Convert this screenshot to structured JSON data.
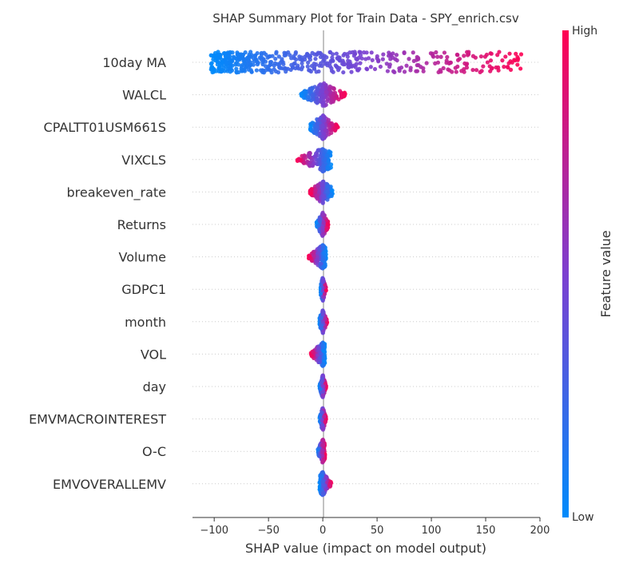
{
  "chart_data": {
    "type": "scatter",
    "title": "SHAP Summary Plot for Train Data - SPY_enrich.csv",
    "xlabel": "SHAP value (impact on model output)",
    "xlim": [
      -120,
      200
    ],
    "xticks": [
      -100,
      -50,
      0,
      50,
      100,
      150,
      200
    ],
    "colorbar": {
      "label": "Feature value",
      "high": "High",
      "low": "Low",
      "low_color": "#008bfb",
      "mid_color": "#7c3fd0",
      "high_color": "#ff0052"
    },
    "features": [
      {
        "name": "10day MA",
        "min": -103,
        "max": 184,
        "spread": "wide"
      },
      {
        "name": "WALCL",
        "min": -20,
        "max": 21
      },
      {
        "name": "CPALTT01USM661S",
        "min": -12,
        "max": 14
      },
      {
        "name": "VIXCLS",
        "min": -24,
        "max": 8
      },
      {
        "name": "breakeven_rate",
        "min": -12,
        "max": 9
      },
      {
        "name": "Returns",
        "min": -6,
        "max": 5
      },
      {
        "name": "Volume",
        "min": -13,
        "max": 3
      },
      {
        "name": "GDPC1",
        "min": -2,
        "max": 3
      },
      {
        "name": "month",
        "min": -3,
        "max": 4
      },
      {
        "name": "VOL",
        "min": -11,
        "max": 2
      },
      {
        "name": "day",
        "min": -3,
        "max": 3
      },
      {
        "name": "EMVMACROINTEREST",
        "min": -3,
        "max": 3
      },
      {
        "name": "O-C",
        "min": -5,
        "max": 2
      },
      {
        "name": "EMVOVERALLEMV",
        "min": -3,
        "max": 8
      }
    ]
  }
}
